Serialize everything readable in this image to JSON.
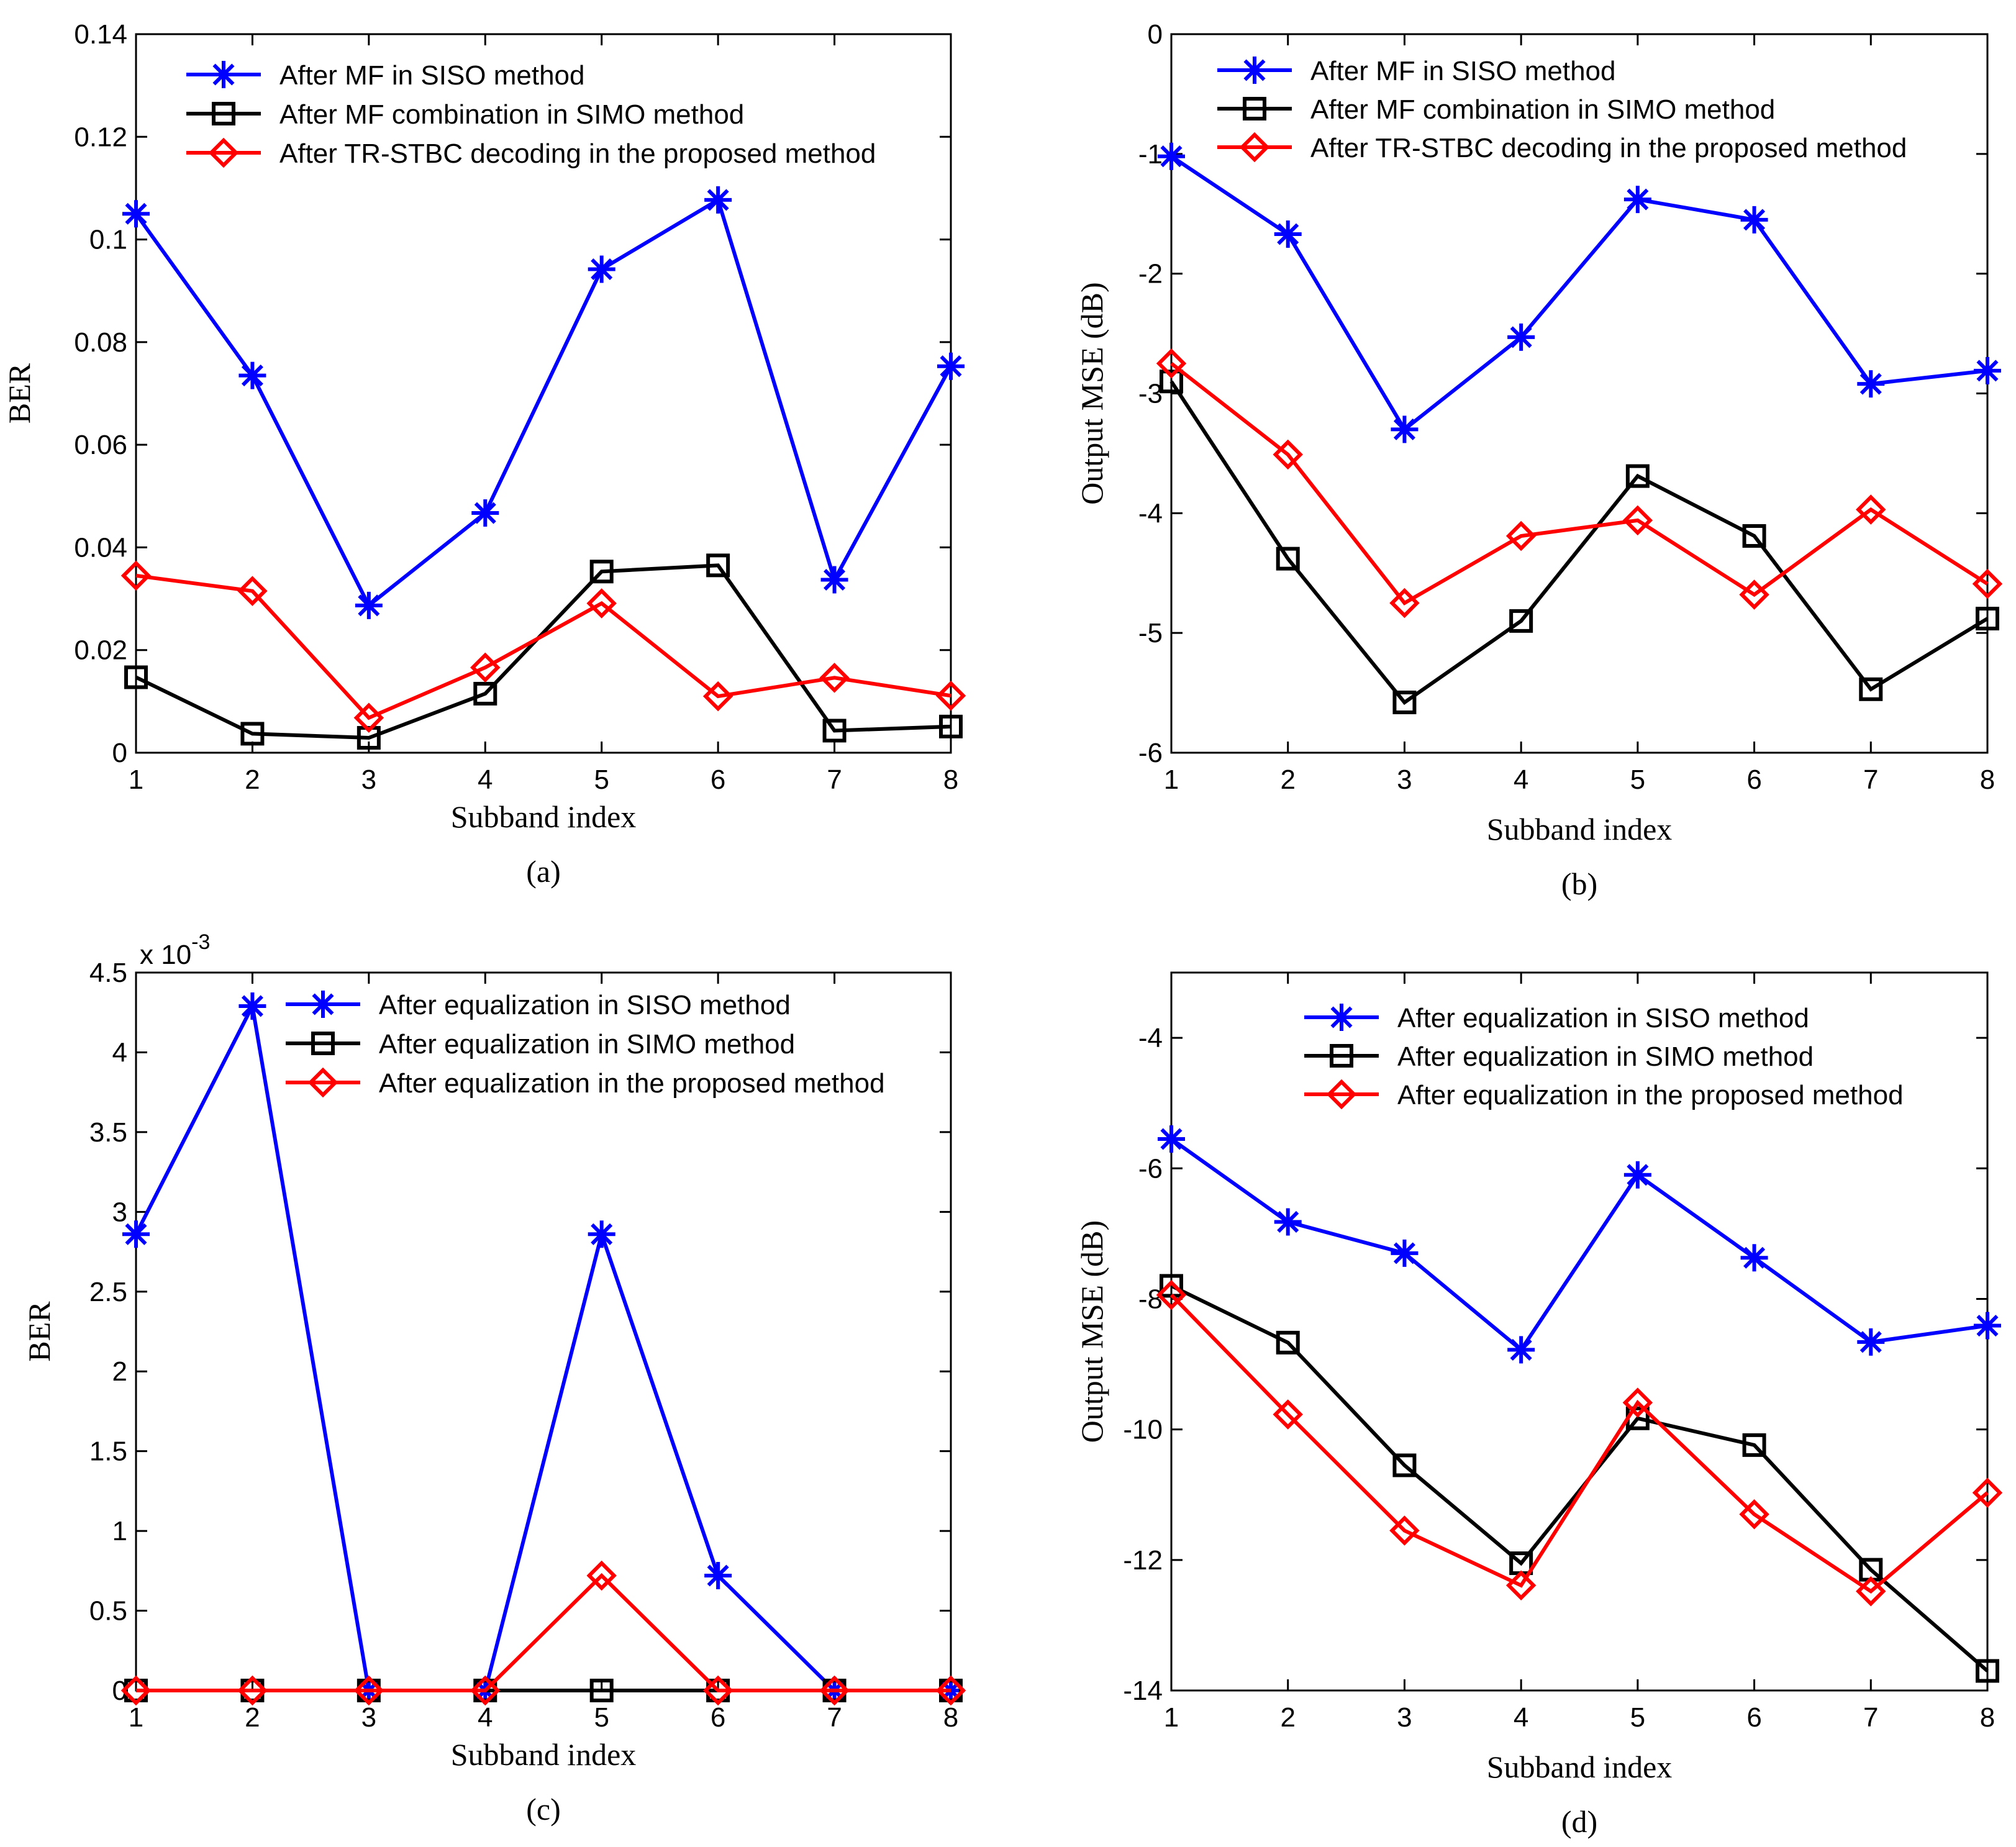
{
  "chart_data": [
    {
      "type": "line",
      "panel_label": "(a)",
      "xlabel": "Subband index",
      "ylabel": "BER",
      "x": [
        1,
        2,
        3,
        4,
        5,
        6,
        7,
        8
      ],
      "xlim": [
        1,
        8
      ],
      "ylim": [
        0,
        0.14
      ],
      "yticks": [
        0,
        0.02,
        0.04,
        0.06,
        0.08,
        0.1,
        0.12,
        0.14
      ],
      "ytick_labels": [
        "0",
        "0.02",
        "0.04",
        "0.06",
        "0.08",
        "0.1",
        "0.12",
        "0.14"
      ],
      "grid": false,
      "legend_position": "top",
      "series": [
        {
          "name": "After MF  in SISO method",
          "color": "#0000ff",
          "marker": "asterisk",
          "values": [
            0.105,
            0.0735,
            0.0287,
            0.0467,
            0.0942,
            0.1077,
            0.0337,
            0.0753
          ]
        },
        {
          "name": "After MF  combination  in SIMO method",
          "color": "#000000",
          "marker": "square",
          "values": [
            0.0147,
            0.0037,
            0.0029,
            0.0115,
            0.0353,
            0.0365,
            0.0043,
            0.0051
          ]
        },
        {
          "name": "After TR-STBC decoding in the proposed method",
          "color": "#ff0000",
          "marker": "diamond",
          "values": [
            0.0345,
            0.0315,
            0.0068,
            0.0166,
            0.0291,
            0.011,
            0.0146,
            0.0111
          ]
        }
      ]
    },
    {
      "type": "line",
      "panel_label": "(b)",
      "xlabel": "Subband index",
      "ylabel": "Output MSE (dB)",
      "x": [
        1,
        2,
        3,
        4,
        5,
        6,
        7,
        8
      ],
      "xlim": [
        1,
        8
      ],
      "ylim": [
        -6,
        0
      ],
      "yticks": [
        -6,
        -5,
        -4,
        -3,
        -2,
        -1,
        0
      ],
      "ytick_labels": [
        "-6",
        "-5",
        "-4",
        "-3",
        "-2",
        "-1",
        "0"
      ],
      "grid": false,
      "legend_position": "top",
      "series": [
        {
          "name": "After MF  in SISO method",
          "color": "#0000ff",
          "marker": "asterisk",
          "values": [
            -1.02,
            -1.67,
            -3.3,
            -2.53,
            -1.38,
            -1.55,
            -2.92,
            -2.81
          ]
        },
        {
          "name": "After MF  combination  in SIMO method",
          "color": "#000000",
          "marker": "square",
          "values": [
            -2.9,
            -4.38,
            -5.58,
            -4.9,
            -3.69,
            -4.19,
            -5.47,
            -4.88
          ]
        },
        {
          "name": "After TR-STBC decoding in the proposed method",
          "color": "#ff0000",
          "marker": "diamond",
          "values": [
            -2.75,
            -3.51,
            -4.75,
            -4.19,
            -4.06,
            -4.68,
            -3.97,
            -4.59
          ]
        }
      ]
    },
    {
      "type": "line",
      "panel_label": "(c)",
      "xlabel": "Subband index",
      "ylabel": "BER",
      "y_multiplier": "x 10",
      "y_multiplier_exponent": "-3",
      "x": [
        1,
        2,
        3,
        4,
        5,
        6,
        7,
        8
      ],
      "xlim": [
        1,
        8
      ],
      "ylim": [
        0,
        4.5
      ],
      "yticks": [
        0,
        0.5,
        1,
        1.5,
        2,
        2.5,
        3,
        3.5,
        4,
        4.5
      ],
      "ytick_labels": [
        "0",
        "0.5",
        "1",
        "1.5",
        "2",
        "2.5",
        "3",
        "3.5",
        "4",
        "4.5"
      ],
      "grid": false,
      "legend_position": "top",
      "series": [
        {
          "name": "After equalization in SISO method",
          "color": "#0000ff",
          "marker": "asterisk",
          "values": [
            2.86,
            4.29,
            0,
            0,
            2.86,
            0.72,
            0,
            0
          ]
        },
        {
          "name": "After equalization in SIMO method",
          "color": "#000000",
          "marker": "square",
          "values": [
            0,
            0,
            0,
            0,
            0,
            0,
            0,
            0
          ]
        },
        {
          "name": "After equalization in the proposed method",
          "color": "#ff0000",
          "marker": "diamond",
          "values": [
            0,
            0,
            0,
            0,
            0.72,
            0,
            0,
            0
          ]
        }
      ]
    },
    {
      "type": "line",
      "panel_label": "(d)",
      "xlabel": "Subband index",
      "ylabel": "Output MSE (dB)",
      "x": [
        1,
        2,
        3,
        4,
        5,
        6,
        7,
        8
      ],
      "xlim": [
        1,
        8
      ],
      "ylim": [
        -14,
        -3
      ],
      "yticks": [
        -14,
        -12,
        -10,
        -8,
        -6,
        -4
      ],
      "ytick_labels": [
        "-14",
        "-12",
        "-10",
        "-8",
        "-6",
        "-4"
      ],
      "grid": false,
      "legend_position": "top",
      "series": [
        {
          "name": "After equalization in SISO method",
          "color": "#0000ff",
          "marker": "asterisk",
          "values": [
            -5.55,
            -6.82,
            -7.3,
            -8.78,
            -6.1,
            -7.37,
            -8.66,
            -8.41
          ]
        },
        {
          "name": "After equalization in SIMO method",
          "color": "#000000",
          "marker": "square",
          "values": [
            -7.8,
            -8.67,
            -10.55,
            -12.05,
            -9.83,
            -10.24,
            -12.15,
            -13.7
          ]
        },
        {
          "name": "After equalization in the proposed method",
          "color": "#ff0000",
          "marker": "diamond",
          "values": [
            -7.94,
            -9.77,
            -11.55,
            -12.39,
            -9.59,
            -11.3,
            -12.48,
            -10.97
          ]
        }
      ]
    }
  ]
}
